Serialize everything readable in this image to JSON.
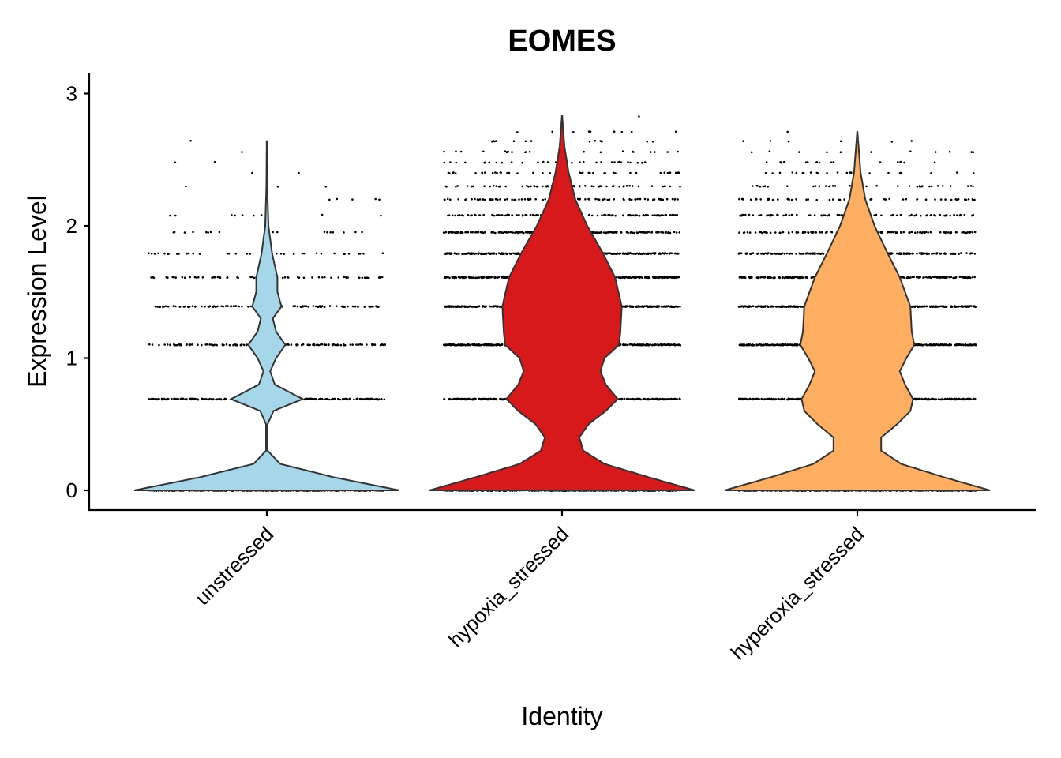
{
  "chart_data": {
    "type": "violin",
    "title": "EOMES",
    "xlabel": "Identity",
    "ylabel": "Expression Level",
    "ylim": [
      -0.15,
      3.15
    ],
    "yticks": [
      0,
      1,
      2,
      3
    ],
    "grid": false,
    "legend": "none",
    "categories": [
      "unstressed",
      "hypoxia_stressed",
      "hyperoxia_stressed"
    ],
    "colors": [
      "#a6d6ea",
      "#d7191c",
      "#fdae61"
    ],
    "expression_levels": [
      0,
      0.69,
      1.1,
      1.39,
      1.61,
      1.79,
      1.95,
      2.08,
      2.2,
      2.3,
      2.4,
      2.48,
      2.56,
      2.64,
      2.71,
      2.83
    ],
    "series": [
      {
        "category": "unstressed",
        "max": 2.64,
        "density": [
          [
            0,
            1.0
          ],
          [
            0.1,
            0.5
          ],
          [
            0.2,
            0.1
          ],
          [
            0.3,
            0.006
          ],
          [
            0.5,
            0.006
          ],
          [
            0.6,
            0.05
          ],
          [
            0.69,
            0.27
          ],
          [
            0.8,
            0.06
          ],
          [
            0.9,
            0.025
          ],
          [
            1.0,
            0.07
          ],
          [
            1.1,
            0.14
          ],
          [
            1.2,
            0.07
          ],
          [
            1.3,
            0.045
          ],
          [
            1.39,
            0.11
          ],
          [
            1.5,
            0.08
          ],
          [
            1.61,
            0.08
          ],
          [
            1.79,
            0.04
          ],
          [
            2.0,
            0.012
          ],
          [
            2.3,
            0.003
          ],
          [
            2.64,
            0.001
          ]
        ]
      },
      {
        "category": "hypoxia_stressed",
        "max": 2.83,
        "density": [
          [
            0,
            1.0
          ],
          [
            0.1,
            0.65
          ],
          [
            0.2,
            0.32
          ],
          [
            0.3,
            0.16
          ],
          [
            0.4,
            0.13
          ],
          [
            0.5,
            0.2
          ],
          [
            0.6,
            0.33
          ],
          [
            0.69,
            0.42
          ],
          [
            0.8,
            0.33
          ],
          [
            0.9,
            0.29
          ],
          [
            1.0,
            0.32
          ],
          [
            1.1,
            0.43
          ],
          [
            1.2,
            0.44
          ],
          [
            1.39,
            0.45
          ],
          [
            1.61,
            0.4
          ],
          [
            1.79,
            0.31
          ],
          [
            2.0,
            0.19
          ],
          [
            2.2,
            0.1
          ],
          [
            2.4,
            0.05
          ],
          [
            2.6,
            0.018
          ],
          [
            2.83,
            0.001
          ]
        ]
      },
      {
        "category": "hyperoxia_stressed",
        "max": 2.71,
        "density": [
          [
            0,
            1.0
          ],
          [
            0.1,
            0.65
          ],
          [
            0.2,
            0.33
          ],
          [
            0.3,
            0.18
          ],
          [
            0.4,
            0.18
          ],
          [
            0.5,
            0.3
          ],
          [
            0.6,
            0.4
          ],
          [
            0.69,
            0.42
          ],
          [
            0.8,
            0.36
          ],
          [
            0.9,
            0.32
          ],
          [
            1.0,
            0.37
          ],
          [
            1.1,
            0.43
          ],
          [
            1.2,
            0.41
          ],
          [
            1.39,
            0.4
          ],
          [
            1.61,
            0.32
          ],
          [
            1.79,
            0.23
          ],
          [
            2.0,
            0.13
          ],
          [
            2.2,
            0.06
          ],
          [
            2.4,
            0.025
          ],
          [
            2.71,
            0.001
          ]
        ]
      }
    ]
  }
}
